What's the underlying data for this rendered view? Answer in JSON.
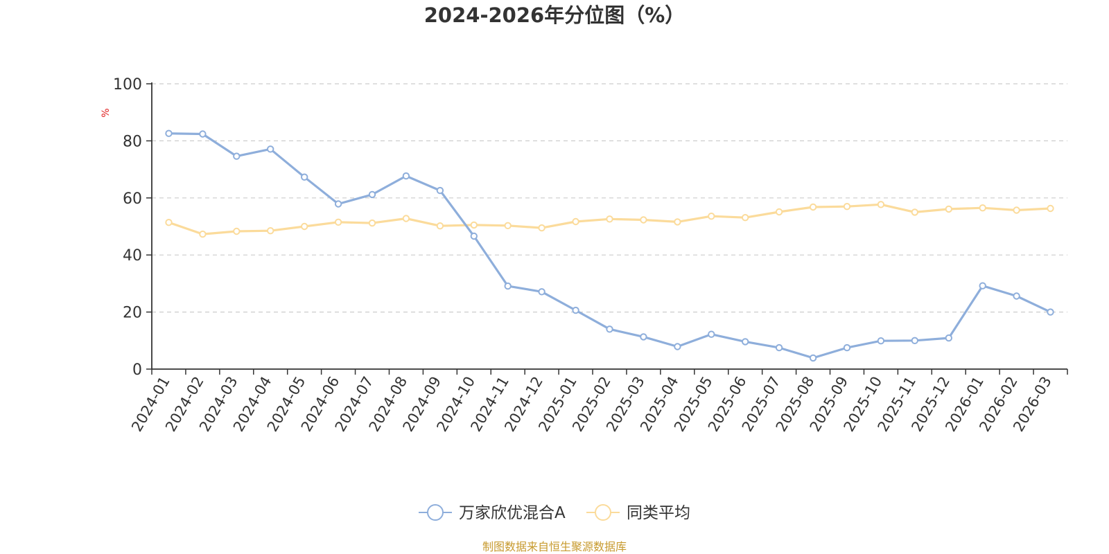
{
  "chart_data": {
    "type": "line",
    "title": "2024-2026年分位图（%）",
    "ylabel": "%",
    "xlabel": "",
    "ylim": [
      0,
      100
    ],
    "yticks": [
      "0",
      "20",
      "40",
      "60",
      "80",
      "100"
    ],
    "grid": true,
    "legend_position": "bottom-center",
    "categories": [
      "2024-01",
      "2024-02",
      "2024-03",
      "2024-04",
      "2024-05",
      "2024-06",
      "2024-07",
      "2024-08",
      "2024-09",
      "2024-10",
      "2024-11",
      "2024-12",
      "2025-01",
      "2025-02",
      "2025-03",
      "2025-04",
      "2025-05",
      "2025-06",
      "2025-07",
      "2025-08",
      "2025-09",
      "2025-10",
      "2025-11",
      "2025-12",
      "2026-01",
      "2026-02",
      "2026-03"
    ],
    "series": [
      {
        "name": "万家欣优混合A",
        "color": "#8eaedb",
        "values": [
          82.6,
          82.4,
          74.6,
          77.1,
          67.3,
          57.9,
          61.2,
          67.7,
          62.6,
          46.6,
          29.1,
          27.1,
          20.6,
          14.0,
          11.3,
          7.9,
          12.2,
          9.6,
          7.5,
          3.9,
          7.5,
          9.9,
          10.0,
          10.9,
          29.2,
          25.6,
          20.0
        ]
      },
      {
        "name": "同类平均",
        "color": "#fbdb9b",
        "values": [
          51.4,
          47.3,
          48.3,
          48.5,
          50.0,
          51.5,
          51.2,
          52.8,
          50.2,
          50.5,
          50.3,
          49.5,
          51.7,
          52.6,
          52.3,
          51.6,
          53.6,
          53.1,
          55.1,
          56.8,
          57.0,
          57.7,
          55.0,
          56.1,
          56.5,
          55.7,
          56.3
        ]
      }
    ]
  },
  "footer": {
    "source": "制图数据来自恒生聚源数据库"
  }
}
